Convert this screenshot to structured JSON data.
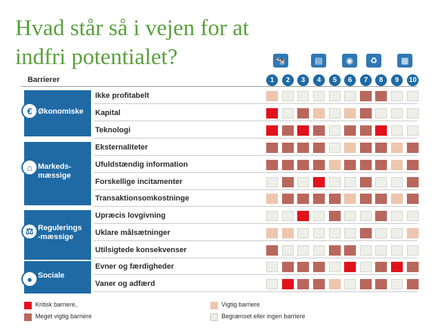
{
  "title": "Hvad står så i vejen for at indfri potentialet?",
  "header_label": "Barrierer",
  "columns": [
    "1",
    "2",
    "3",
    "4",
    "5",
    "6",
    "7",
    "8",
    "9",
    "10"
  ],
  "column_icons": [
    {
      "name": "cow-icon",
      "glyph": "🐄"
    },
    {
      "name": "building-cart-icon",
      "glyph": "▤"
    },
    {
      "name": "lightbulb-icon",
      "glyph": "◉"
    },
    {
      "name": "recycle-icon",
      "glyph": "♻"
    },
    {
      "name": "office-building-icon",
      "glyph": "▦"
    }
  ],
  "colors": {
    "critical": "#e2121c",
    "very_important": "#b9675c",
    "important": "#edc6ad",
    "limited": "#efefea",
    "group": "#1f6aa5",
    "title": "#5aa03c"
  },
  "groups": [
    {
      "name": "Økonomiske",
      "icon": "euro-icon",
      "glyph": "€"
    },
    {
      "name": "Markeds-\nmæssige",
      "icon": "market-stall-icon",
      "glyph": "⌂"
    },
    {
      "name": "Regulerings\n-mæssige",
      "icon": "scales-icon",
      "glyph": "⚖"
    },
    {
      "name": "Sociale",
      "icon": "person-icon",
      "glyph": "●"
    }
  ],
  "rows": [
    {
      "label": "Ikke profitabelt",
      "levels": [
        "important",
        "limited",
        "limited",
        "limited",
        "limited",
        "limited",
        "very_important",
        "very_important",
        "limited",
        "limited"
      ]
    },
    {
      "label": "Kapital",
      "levels": [
        "critical",
        "limited",
        "very_important",
        "important",
        "limited",
        "important",
        "very_important",
        "limited",
        "limited",
        "limited"
      ]
    },
    {
      "label": "Teknologi",
      "levels": [
        "critical",
        "very_important",
        "critical",
        "very_important",
        "limited",
        "very_important",
        "very_important",
        "critical",
        "limited",
        "limited"
      ]
    },
    {
      "label": "Eksternaliteter",
      "levels": [
        "very_important",
        "very_important",
        "very_important",
        "very_important",
        "limited",
        "important",
        "very_important",
        "very_important",
        "important",
        "very_important"
      ]
    },
    {
      "label": "Ufuldstændig information",
      "levels": [
        "very_important",
        "very_important",
        "very_important",
        "very_important",
        "important",
        "very_important",
        "very_important",
        "very_important",
        "important",
        "very_important"
      ]
    },
    {
      "label": "Forskellige incitamenter",
      "levels": [
        "limited",
        "very_important",
        "limited",
        "critical",
        "limited",
        "limited",
        "very_important",
        "limited",
        "limited",
        "very_important"
      ]
    },
    {
      "label": "Transaktionsomkostninge",
      "levels": [
        "important",
        "very_important",
        "very_important",
        "very_important",
        "very_important",
        "important",
        "very_important",
        "very_important",
        "important",
        "very_important"
      ]
    },
    {
      "label": "Upræcis lovgivning",
      "levels": [
        "limited",
        "limited",
        "critical",
        "limited",
        "very_important",
        "limited",
        "limited",
        "very_important",
        "limited",
        "limited"
      ]
    },
    {
      "label": "Uklare målsætninger",
      "levels": [
        "important",
        "important",
        "limited",
        "limited",
        "limited",
        "limited",
        "very_important",
        "limited",
        "limited",
        "important"
      ]
    },
    {
      "label": "Utilsigtede konsekvenser",
      "levels": [
        "very_important",
        "limited",
        "limited",
        "limited",
        "very_important",
        "very_important",
        "limited",
        "limited",
        "limited",
        "limited"
      ]
    },
    {
      "label": "Evner og færdigheder",
      "levels": [
        "limited",
        "very_important",
        "very_important",
        "very_important",
        "limited",
        "critical",
        "limited",
        "very_important",
        "critical",
        "very_important"
      ]
    },
    {
      "label": "Vaner og adfærd",
      "levels": [
        "limited",
        "critical",
        "very_important",
        "very_important",
        "important",
        "limited",
        "very_important",
        "very_important",
        "limited",
        "very_important"
      ]
    }
  ],
  "legend": [
    {
      "key": "critical",
      "label": "Kritisk barriere,"
    },
    {
      "key": "very_important",
      "label": "Meget vigtig barriere"
    },
    {
      "key": "important",
      "label": "Vigtig barriere"
    },
    {
      "key": "limited",
      "label": "Begrænset eller ingen barriere"
    }
  ]
}
